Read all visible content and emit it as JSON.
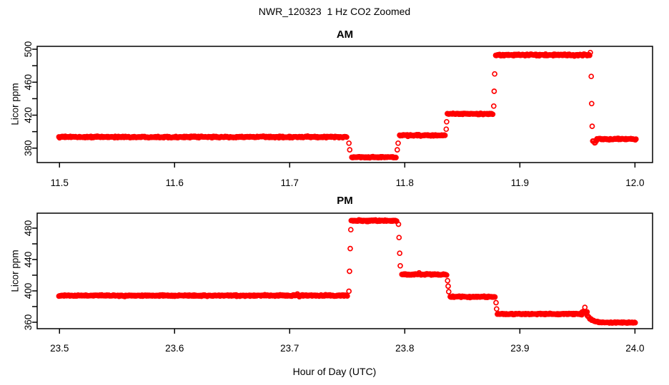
{
  "figure": {
    "title": "NWR_120323  1 Hz CO2 Zoomed",
    "xlabel": "Hour of Day (UTC)",
    "background": "#FFFFFF",
    "point_color": "#FF0000",
    "axis_color": "#000000"
  },
  "chart_data": [
    {
      "type": "scatter",
      "panel_title": "AM",
      "ylabel": "Licor ppm",
      "marker": "open-circle",
      "sample_rate": "1 Hz",
      "xlim": [
        11.4806,
        12.0153
      ],
      "ylim": [
        362.5,
        503.5
      ],
      "xticks": [
        11.5,
        11.6,
        11.7,
        11.8,
        11.9,
        12.0
      ],
      "xtick_labels": [
        "11.5",
        "11.6",
        "11.7",
        "11.8",
        "11.9",
        "12.0"
      ],
      "yticks": [
        380,
        400,
        420,
        440,
        460,
        480,
        500
      ],
      "ytick_labels": [
        "380",
        "",
        "420",
        "",
        "460",
        "",
        "500"
      ],
      "segments": [
        {
          "x0": 11.4995,
          "x1": 11.75,
          "y": 393.5,
          "noise": 0.8
        },
        {
          "x0": 11.754,
          "x1": 11.7925,
          "y": 369.0,
          "noise": 0.8
        },
        {
          "x0": 11.7955,
          "x1": 11.8355,
          "y": 395.5,
          "noise": 0.8
        },
        {
          "x0": 11.837,
          "x1": 11.8765,
          "y": 421.5,
          "noise": 0.8
        },
        {
          "x0": 11.879,
          "x1": 11.961,
          "y": 493.0,
          "noise": 1.0
        },
        {
          "x0": 11.9633,
          "x1": 11.967,
          "y": 388.5,
          "noise": 1.6
        },
        {
          "x0": 11.967,
          "x1": 12.001,
          "y": 391.0,
          "noise": 0.8
        }
      ],
      "transition_points": [
        {
          "x": 11.7515,
          "y": 386.0
        },
        {
          "x": 11.7522,
          "y": 378.0
        },
        {
          "x": 11.7935,
          "y": 378.0
        },
        {
          "x": 11.7942,
          "y": 386.0
        },
        {
          "x": 11.836,
          "y": 403.0
        },
        {
          "x": 11.8364,
          "y": 412.0
        },
        {
          "x": 11.8773,
          "y": 431.0
        },
        {
          "x": 11.8777,
          "y": 449.0
        },
        {
          "x": 11.8781,
          "y": 470.0
        },
        {
          "x": 11.9612,
          "y": 496.0
        },
        {
          "x": 11.962,
          "y": 467.0
        },
        {
          "x": 11.9624,
          "y": 434.0
        },
        {
          "x": 11.9628,
          "y": 406.5
        }
      ]
    },
    {
      "type": "scatter",
      "panel_title": "PM",
      "ylabel": "Licor ppm",
      "marker": "open-circle",
      "sample_rate": "1 Hz",
      "xlim": [
        23.4806,
        24.0153
      ],
      "ylim": [
        351.8,
        499.1
      ],
      "xticks": [
        23.5,
        23.6,
        23.7,
        23.8,
        23.9,
        24.0
      ],
      "xtick_labels": [
        "23.5",
        "23.6",
        "23.7",
        "23.8",
        "23.9",
        "24.0"
      ],
      "yticks": [
        360,
        380,
        400,
        420,
        440,
        460,
        480
      ],
      "ytick_labels": [
        "360",
        "",
        "400",
        "",
        "440",
        "",
        "480"
      ],
      "segments": [
        {
          "x0": 23.4995,
          "x1": 23.7505,
          "y": 394.0,
          "noise": 0.8
        },
        {
          "x0": 23.7535,
          "x1": 23.793,
          "y": 489.5,
          "noise": 1.0
        },
        {
          "x0": 23.7975,
          "x1": 23.8365,
          "y": 421.0,
          "noise": 0.8
        },
        {
          "x0": 23.8395,
          "x1": 23.8785,
          "y": 392.5,
          "noise": 0.8
        },
        {
          "x0": 23.8805,
          "x1": 23.954,
          "y": 370.5,
          "noise": 0.8
        },
        {
          "x0": 23.954,
          "x1": 23.9585,
          "y": 373.0,
          "noise": 1.5
        },
        {
          "x0": 23.9585,
          "x1": 23.978,
          "decay": true,
          "y0": 369.0,
          "y1": 359.5,
          "tau": 0.004,
          "noise": 0.7
        },
        {
          "x0": 23.978,
          "x1": 24.0005,
          "y": 359.5,
          "noise": 0.6
        }
      ],
      "transition_points": [
        {
          "x": 23.7515,
          "y": 399.5
        },
        {
          "x": 23.752,
          "y": 425.0
        },
        {
          "x": 23.7526,
          "y": 454.0
        },
        {
          "x": 23.7531,
          "y": 478.0
        },
        {
          "x": 23.7945,
          "y": 485.0
        },
        {
          "x": 23.795,
          "y": 468.0
        },
        {
          "x": 23.7956,
          "y": 448.0
        },
        {
          "x": 23.7961,
          "y": 432.0
        },
        {
          "x": 23.8372,
          "y": 413.0
        },
        {
          "x": 23.8377,
          "y": 406.0
        },
        {
          "x": 23.8382,
          "y": 399.0
        },
        {
          "x": 23.8793,
          "y": 385.0
        },
        {
          "x": 23.8798,
          "y": 377.0
        },
        {
          "x": 23.9565,
          "y": 379.0
        }
      ]
    }
  ]
}
